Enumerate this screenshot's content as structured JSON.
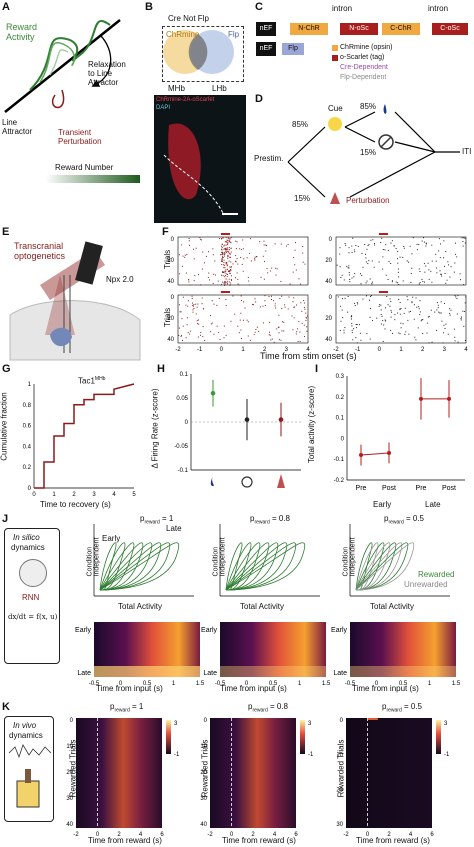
{
  "panels": {
    "A": {
      "label": "A",
      "reward_activity": "Reward\nActivity",
      "relaxation": "Relaxation\nto Line\nAttractor",
      "line_attractor": "Line\nAttractor",
      "transient": "Transient\nPerturbation",
      "reward_number": "Reward Number"
    },
    "B": {
      "label": "B",
      "title": "Cre Not Flp",
      "chrmine": "ChRmine",
      "flp": "Flp",
      "mhb": "MHb",
      "lhb": "LHb",
      "micro_label1": "ChRmine-2A-oScarlet",
      "micro_label2": "DAPI"
    },
    "C": {
      "label": "C",
      "nef1": "nEF",
      "nchr": "N-ChR",
      "noscs": "N-oSc",
      "cchr": "C-ChR",
      "coscs": "C-oSc",
      "intron": "intron",
      "nef2": "nEF",
      "flp": "Flp",
      "legend": [
        "ChRmine (opsin)",
        "o-Scarlet (tag)",
        "Cre-Dependent",
        "Flp-Dependent"
      ]
    },
    "D": {
      "label": "D",
      "prestim": "Prestim.",
      "cue": "Cue",
      "p85a": "85%",
      "p85b": "85%",
      "p15a": "15%",
      "p15b": "15%",
      "perturbation": "Perturbation",
      "iti": "ITI"
    },
    "E": {
      "label": "E",
      "title": "Transcranial\noptogenetics",
      "npx": "Npx 2.0"
    },
    "F": {
      "label": "F",
      "ylabel": "Trials",
      "xlabel": "Time from stim onset (s)",
      "xticks": [
        "-2",
        "-1",
        "0",
        "1",
        "2",
        "3",
        "4"
      ],
      "yticks": [
        "0",
        "20",
        "40"
      ]
    },
    "G": {
      "label": "G",
      "ylabel": "Cumulative fraction",
      "xlabel": "Time to recovery (s)",
      "series": "Tac1",
      "series_sup": "MHb",
      "yticks": [
        "0",
        "0.2",
        "0.4",
        "0.6",
        "0.8",
        "1"
      ],
      "xticks": [
        "0",
        "1",
        "2",
        "3",
        "4",
        "5"
      ]
    },
    "H": {
      "label": "H",
      "ylabel": "Δ Firing Rate (z-score)",
      "yticks": [
        "0.1",
        "0.05",
        "0",
        "-0.05",
        "-0.1"
      ]
    },
    "I": {
      "label": "I",
      "ylabel": "Total activity (z-score)",
      "yticks": [
        "0.3",
        "0.2",
        "0.1",
        "0",
        "-0.1",
        "-0.2"
      ],
      "xticks": [
        "Pre",
        "Post",
        "Pre",
        "Post"
      ],
      "groups": [
        "Early",
        "Late"
      ]
    },
    "J": {
      "label": "J",
      "insilico": "In silico",
      "dynamics": "dynamics",
      "rnn": "RNN",
      "eq": "dx/dt = f(x, u)",
      "p_labels": [
        "1",
        "0.8",
        "0.5"
      ],
      "ylabel_top": "Condition\nIndependent",
      "xlabel_top": "Total Activity",
      "early": "Early",
      "late": "Late",
      "rewarded": "Rewarded",
      "unrewarded": "Unrewarded",
      "xlabel_bottom": "Time from input (s)",
      "xticks": [
        "-0.5",
        "0",
        "0.5",
        "1",
        "1.5"
      ],
      "ylabel_bottom_early": "Early",
      "ylabel_bottom_late": "Late",
      "preward": "p",
      "preward_sub": "reward"
    },
    "K": {
      "label": "K",
      "invivo": "In vivo",
      "dynamics": "dynamics",
      "ylabel": "Rewarded Trials",
      "xlabel": "Time from reward (s)",
      "xticks": [
        "-2",
        "0",
        "2",
        "4",
        "6"
      ],
      "yticks_a": [
        "0",
        "10",
        "20",
        "30",
        "40"
      ],
      "yticks_c": [
        "0",
        "10",
        "20",
        "30"
      ],
      "cbar_hi": "3",
      "cbar_lo": "-1"
    }
  },
  "chart_data": [
    {
      "type": "line",
      "name": "G",
      "x": [
        0,
        0.5,
        0.5,
        1,
        1,
        1.5,
        1.5,
        2,
        2,
        2.5,
        2.5,
        3,
        3,
        4,
        4,
        5
      ],
      "values": [
        0,
        0,
        0.25,
        0.25,
        0.5,
        0.5,
        0.62,
        0.62,
        0.8,
        0.8,
        0.85,
        0.85,
        0.9,
        0.9,
        0.95,
        1
      ],
      "xlim": [
        0,
        5
      ],
      "ylim": [
        0,
        1
      ]
    },
    {
      "type": "scatter",
      "name": "H",
      "categories": [
        "water",
        "omission",
        "perturbation"
      ],
      "values": [
        0.06,
        0.005,
        0.005
      ],
      "err": [
        0.028,
        0.043,
        0.035
      ],
      "ylim": [
        -0.1,
        0.1
      ]
    },
    {
      "type": "line",
      "name": "I",
      "categories": [
        "Pre",
        "Post",
        "Pre",
        "Post"
      ],
      "values": [
        -0.08,
        -0.07,
        0.19,
        0.19
      ],
      "err": [
        0.05,
        0.05,
        0.1,
        0.09
      ],
      "ylim": [
        -0.2,
        0.3
      ]
    }
  ],
  "colors": {
    "red": "#8b1a1a",
    "green": "#2f7d32",
    "purple": "#9a4aa8",
    "orange": "#e8a23a"
  }
}
